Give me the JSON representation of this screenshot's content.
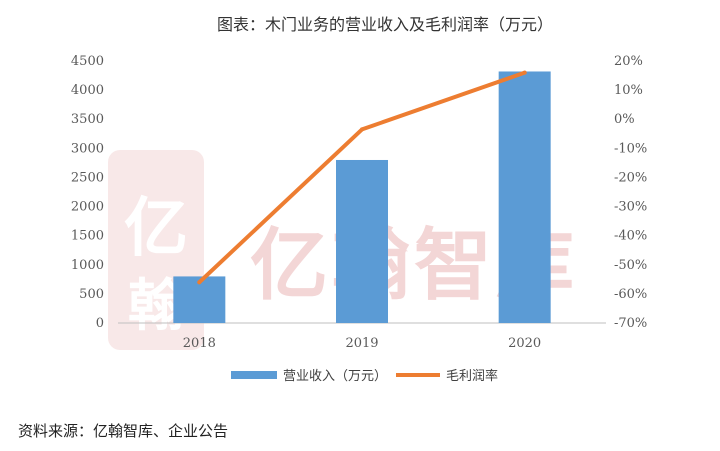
{
  "chart_data": {
    "type": "bar",
    "title": "图表：木门业务的营业收入及毛利润率（万元）",
    "categories": [
      "2018",
      "2019",
      "2020"
    ],
    "series": [
      {
        "name": "营业收入（万元）",
        "type": "bar",
        "axis": "left",
        "color": "#5b9bd5",
        "values": [
          800,
          2800,
          4320
        ]
      },
      {
        "name": "毛利润率",
        "type": "line",
        "axis": "right",
        "color": "#ed7d31",
        "values": [
          -0.56,
          -0.035,
          0.16
        ]
      }
    ],
    "y_left": {
      "min": 0,
      "max": 4500,
      "ticks": [
        0,
        500,
        1000,
        1500,
        2000,
        2500,
        3000,
        3500,
        4000,
        4500
      ],
      "tick_labels": [
        "0",
        "500",
        "1000",
        "1500",
        "2000",
        "2500",
        "3000",
        "3500",
        "4000",
        "4500"
      ]
    },
    "y_right": {
      "min": -0.7,
      "max": 0.2,
      "ticks": [
        -0.7,
        -0.6,
        -0.5,
        -0.4,
        -0.3,
        -0.2,
        -0.1,
        0,
        0.1,
        0.2
      ],
      "tick_labels": [
        "-70%",
        "-60%",
        "-50%",
        "-40%",
        "-30%",
        "-20%",
        "-10%",
        "0%",
        "10%",
        "20%"
      ]
    },
    "grid": false,
    "legend_position": "bottom"
  },
  "watermark": {
    "text": "亿翰智库",
    "seal": "亿翰",
    "color": "#f3d6d6"
  },
  "source_text": "资料来源：亿翰智库、企业公告"
}
